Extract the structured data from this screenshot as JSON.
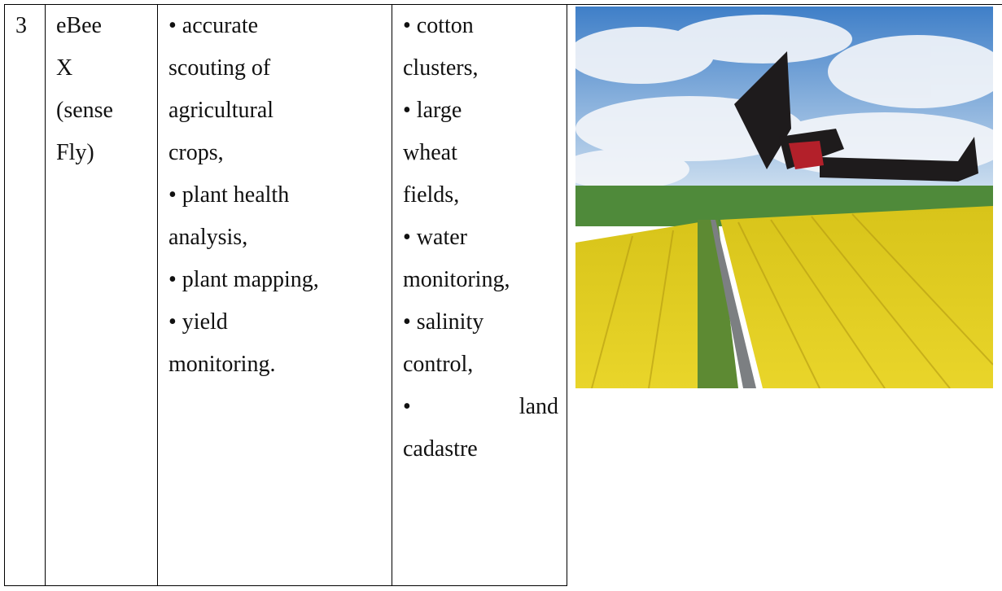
{
  "table": {
    "rows": [
      {
        "number": "3",
        "name": [
          "eBee",
          "X",
          "(sense",
          "Fly)"
        ],
        "applications": [
          "• accurate",
          "scouting of",
          "agricultural",
          "crops,",
          "• plant health",
          "analysis,",
          "• plant mapping,",
          "• yield",
          "monitoring."
        ],
        "objects": [
          "• cotton",
          "clusters,",
          "• large",
          "wheat",
          "fields,",
          "• water",
          "monitoring,",
          "• salinity",
          "control,",
          "• land",
          "cadastre"
        ]
      }
    ]
  }
}
